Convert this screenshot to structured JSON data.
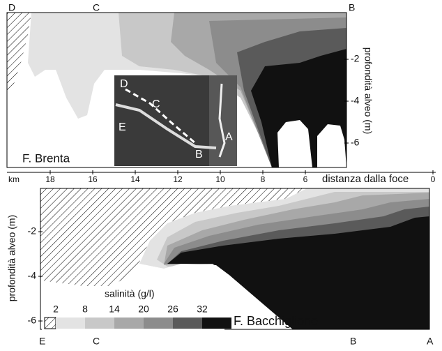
{
  "x_axis": {
    "unit": "km",
    "title": "distanza dalla foce",
    "ticks": [
      18,
      16,
      14,
      12,
      10,
      8,
      6,
      0
    ]
  },
  "top_panel": {
    "name": "F. Brenta",
    "letters": [
      "D",
      "C",
      "B"
    ],
    "y_axis": {
      "title": "profondità alveo (m)",
      "ticks": [
        -2,
        -4,
        -6
      ]
    }
  },
  "bottom_panel": {
    "name": "F. Bacchiglione",
    "letters": [
      "E",
      "C",
      "B",
      "A"
    ],
    "y_axis": {
      "title": "profondità alveo (m)",
      "ticks": [
        -2,
        -4,
        -6
      ]
    }
  },
  "legend": {
    "title": "salinità (g/l)",
    "values": [
      2,
      8,
      14,
      20,
      26,
      32
    ]
  },
  "inset": {
    "labels": [
      "D",
      "C",
      "E",
      "B",
      "A"
    ]
  }
}
